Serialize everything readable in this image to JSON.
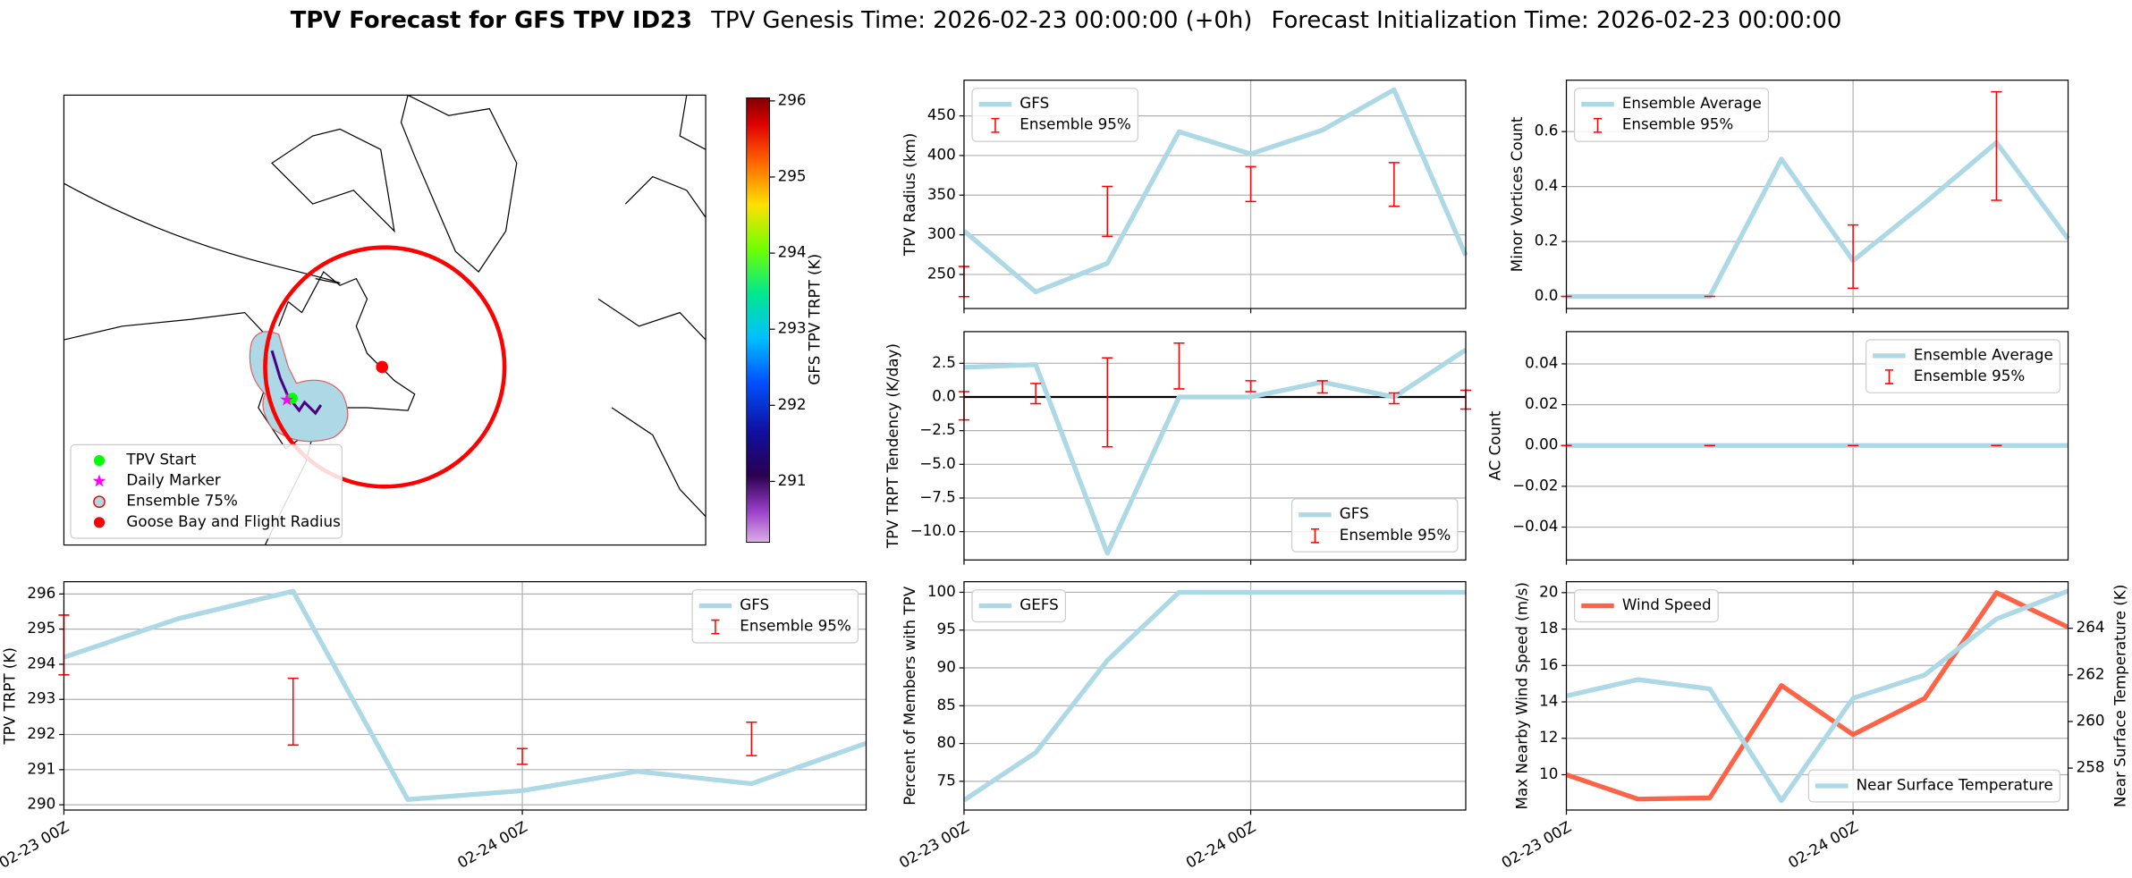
{
  "title": {
    "bold": "TPV Forecast for GFS TPV ID23",
    "genesis": "TPV Genesis Time: 2026-02-23 00:00:00 (+0h)",
    "init": "Forecast Initialization Time: 2026-02-23 00:00:00"
  },
  "chart_data": [
    {
      "type": "map",
      "legend_loc": "lower left",
      "legend": [
        {
          "name": "TPV Start",
          "color": "#00ff00",
          "marker": "circle"
        },
        {
          "name": "Daily Marker",
          "color": "#ff00ff",
          "marker": "star"
        },
        {
          "name": "Ensemble 75%",
          "color": "#add8e6",
          "edge": "#ff0000",
          "marker": "circle"
        },
        {
          "name": "Goose Bay and Flight Radius",
          "color": "#ff0000",
          "marker": "circle"
        }
      ],
      "colorbar": {
        "label": "GFS TPV TRPT (K)",
        "lim": [
          290.2,
          296.04
        ],
        "ticks": [
          291,
          292,
          293,
          294,
          295,
          296
        ]
      }
    },
    {
      "type": "line",
      "ylabel": "TPV Radius (km)",
      "x": [
        "02-23 00Z",
        "02-23 06Z",
        "02-23 12Z",
        "02-23 18Z",
        "02-24 00Z",
        "02-24 06Z",
        "02-24 12Z",
        "02-24 18Z"
      ],
      "xticks": [
        "02-23 00Z",
        "02-24 00Z"
      ],
      "xticklabels": false,
      "ylim": [
        207,
        495
      ],
      "yticks": [
        250,
        300,
        350,
        400,
        450
      ],
      "grid": true,
      "legend": "upper left",
      "series": [
        {
          "name": "GFS",
          "color": "#add8e6",
          "values": [
            305,
            228,
            264,
            430,
            402,
            432,
            483,
            274
          ]
        },
        {
          "name": "Ensemble 95%",
          "type": "errorbar",
          "color": "#ff0000",
          "lower": [
            222,
            null,
            298,
            null,
            342,
            null,
            336,
            null
          ],
          "upper": [
            260,
            null,
            361,
            null,
            386,
            null,
            391,
            null
          ]
        }
      ]
    },
    {
      "type": "line",
      "ylabel": "Minor Vortices Count",
      "x": [
        "02-23 00Z",
        "02-23 06Z",
        "02-23 12Z",
        "02-23 18Z",
        "02-24 00Z",
        "02-24 06Z",
        "02-24 12Z",
        "02-24 18Z"
      ],
      "xticks": [
        "02-23 00Z",
        "02-24 00Z"
      ],
      "xticklabels": false,
      "ylim": [
        -0.044,
        0.787
      ],
      "yticks": [
        {
          "value": 0,
          "label": "0.0"
        },
        0.2,
        0.4,
        0.6
      ],
      "grid": true,
      "legend": "upper left",
      "series": [
        {
          "name": "Ensemble Average",
          "color": "#add8e6",
          "values": [
            0,
            0,
            0,
            0.5,
            0.13,
            0.34,
            0.56,
            0.21
          ]
        },
        {
          "name": "Ensemble 95%",
          "type": "errorbar",
          "color": "#ff0000",
          "lower": [
            0,
            null,
            0,
            null,
            0.03,
            null,
            0.35,
            null
          ],
          "upper": [
            0,
            null,
            0,
            null,
            0.26,
            null,
            0.745,
            null
          ]
        }
      ]
    },
    {
      "type": "line",
      "ylabel": "TPV TRPT Tendency (K/day)",
      "x": [
        "02-23 00Z",
        "02-23 06Z",
        "02-23 12Z",
        "02-23 18Z",
        "02-24 00Z",
        "02-24 06Z",
        "02-24 12Z",
        "02-24 18Z"
      ],
      "xticks": [
        "02-23 00Z",
        "02-24 00Z"
      ],
      "xticklabels": false,
      "ylim": [
        -12.1,
        4.85
      ],
      "yticks": [
        {
          "value": -10,
          "label": "−10.0"
        },
        {
          "value": -7.5,
          "label": "−7.5"
        },
        {
          "value": -5,
          "label": "−5.0"
        },
        {
          "value": -2.5,
          "label": "−2.5"
        },
        {
          "value": 0,
          "label": "0.0"
        },
        2.5
      ],
      "grid": true,
      "legend": "lower right",
      "hline": 0,
      "hline_color": "#000000",
      "series": [
        {
          "name": "GFS",
          "color": "#add8e6",
          "values": [
            2.2,
            2.4,
            -11.6,
            0,
            0,
            1.1,
            0,
            3.5
          ]
        },
        {
          "name": "Ensemble 95%",
          "type": "errorbar",
          "color": "#ff0000",
          "lower": [
            -1.7,
            -0.5,
            -3.7,
            0.6,
            0.4,
            0.3,
            -0.5,
            -0.9
          ],
          "upper": [
            0.4,
            1.0,
            2.9,
            4.0,
            1.2,
            1.2,
            0.3,
            0.5
          ]
        }
      ]
    },
    {
      "type": "line",
      "ylabel": "AC Count",
      "x": [
        "02-23 00Z",
        "02-23 06Z",
        "02-23 12Z",
        "02-23 18Z",
        "02-24 00Z",
        "02-24 06Z",
        "02-24 12Z",
        "02-24 18Z"
      ],
      "xticks": [
        "02-23 00Z",
        "02-24 00Z"
      ],
      "xticklabels": false,
      "ylim": [
        -0.0561,
        0.0558
      ],
      "yticks": [
        {
          "value": -0.04,
          "label": "−0.04"
        },
        {
          "value": -0.02,
          "label": "−0.02"
        },
        {
          "value": 0,
          "label": "0.00"
        },
        0.02,
        0.04
      ],
      "grid": true,
      "legend": "upper right",
      "series": [
        {
          "name": "Ensemble Average",
          "color": "#add8e6",
          "values": [
            0,
            0,
            0,
            0,
            0,
            0,
            0,
            0
          ]
        },
        {
          "name": "Ensemble 95%",
          "type": "errorbar",
          "color": "#ff0000",
          "lower": [
            0,
            null,
            0,
            null,
            0,
            null,
            0,
            null
          ],
          "upper": [
            0,
            null,
            0,
            null,
            0,
            null,
            0,
            null
          ]
        }
      ]
    },
    {
      "type": "line",
      "ylabel": "TPV TRPT (K)",
      "x": [
        "02-23 00Z",
        "02-23 06Z",
        "02-23 12Z",
        "02-23 18Z",
        "02-24 00Z",
        "02-24 06Z",
        "02-24 12Z",
        "02-24 18Z"
      ],
      "xticks": [
        "02-23 00Z",
        "02-24 00Z"
      ],
      "xticklabels": true,
      "ylim": [
        289.85,
        296.35
      ],
      "yticks": [
        290,
        291,
        292,
        293,
        294,
        295,
        296
      ],
      "grid": true,
      "legend": "upper right",
      "series": [
        {
          "name": "GFS",
          "color": "#add8e6",
          "values": [
            294.2,
            295.3,
            296.08,
            290.15,
            290.4,
            290.95,
            290.6,
            291.75
          ]
        },
        {
          "name": "Ensemble 95%",
          "type": "errorbar",
          "color": "#ff0000",
          "lower": [
            293.7,
            null,
            291.7,
            null,
            291.15,
            null,
            291.4,
            null
          ],
          "upper": [
            295.4,
            null,
            293.6,
            null,
            291.6,
            null,
            292.35,
            null
          ]
        }
      ]
    },
    {
      "type": "line",
      "ylabel": "Percent of Members with TPV",
      "x": [
        "02-23 00Z",
        "02-23 06Z",
        "02-23 12Z",
        "02-23 18Z",
        "02-24 00Z",
        "02-24 06Z",
        "02-24 12Z",
        "02-24 18Z"
      ],
      "xticks": [
        "02-23 00Z",
        "02-24 00Z"
      ],
      "xticklabels": true,
      "ylim": [
        71.2,
        101.4
      ],
      "yticks": [
        75,
        80,
        85,
        90,
        95,
        100
      ],
      "grid": true,
      "legend": "upper left",
      "series": [
        {
          "name": "GEFS",
          "color": "#add8e6",
          "values": [
            72.5,
            78.8,
            91,
            100,
            100,
            100,
            100,
            100
          ]
        }
      ]
    },
    {
      "type": "line",
      "ylabel": "Max Nearby Wind Speed (m/s)",
      "y2label": "Near Surface Temperature (K)",
      "x": [
        "02-23 00Z",
        "02-23 06Z",
        "02-23 12Z",
        "02-23 18Z",
        "02-24 00Z",
        "02-24 06Z",
        "02-24 12Z",
        "02-24 18Z"
      ],
      "xticks": [
        "02-23 00Z",
        "02-24 00Z"
      ],
      "xticklabels": true,
      "ylim": [
        8.06,
        20.6
      ],
      "yticks": [
        10,
        12,
        14,
        16,
        18,
        20
      ],
      "ycolor": "#ff6347",
      "y2lim": [
        256.2,
        266.0
      ],
      "y2ticks": [
        258,
        260,
        262,
        264
      ],
      "y2color": "#4169e1",
      "grid": true,
      "legend": "upper left",
      "legend2": "lower right",
      "series": [
        {
          "name": "Wind Speed",
          "color": "#ff6347",
          "values": [
            10,
            8.66,
            8.73,
            14.9,
            12.2,
            14.2,
            20,
            18.1
          ]
        },
        {
          "name": "Near Surface Temperature",
          "color": "#add8e6",
          "axis": "y2",
          "values": [
            261.1,
            261.8,
            261.4,
            256.6,
            261.0,
            262.0,
            264.4,
            265.6
          ]
        }
      ]
    }
  ]
}
